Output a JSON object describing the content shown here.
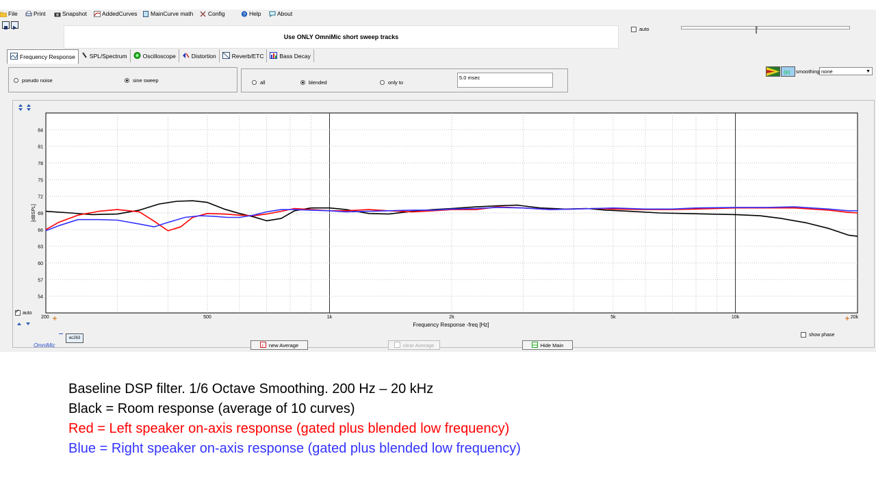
{
  "menu": [
    {
      "label": "File",
      "icon": "folder-icon"
    },
    {
      "label": "Print",
      "icon": "printer-icon"
    },
    {
      "label": "Snapshot",
      "icon": "camera-icon"
    },
    {
      "label": "AddedCurves",
      "icon": "curves-icon"
    },
    {
      "label": "MainCurve math",
      "icon": "calculator-icon"
    },
    {
      "label": "Config",
      "icon": "tools-icon"
    },
    {
      "label": "Help",
      "icon": "help-icon"
    },
    {
      "label": "About",
      "icon": "speech-bubble-icon"
    }
  ],
  "banner": "Use ONLY OmniMic short sweep tracks",
  "auto_label": "auto",
  "tabs": [
    {
      "label": "Frequency Response",
      "icon": "frequency-icon",
      "active": true
    },
    {
      "label": "SPL/Spectrum",
      "icon": "microphone-icon",
      "active": false
    },
    {
      "label": "Oscilloscope",
      "icon": "oscilloscope-icon",
      "active": false
    },
    {
      "label": "Distortion",
      "icon": "distortion-icon",
      "active": false
    },
    {
      "label": "Reverb/ETC",
      "icon": "reverb-icon",
      "active": false
    },
    {
      "label": "Bass Decay",
      "icon": "bass-decay-icon",
      "active": false
    }
  ],
  "signal": {
    "pseudo_noise": "pseudo noise",
    "sine_sweep": "sine sweep",
    "selected": "sine sweep"
  },
  "gating": {
    "all": "all",
    "blended": "blended",
    "only_to": "only to",
    "selected": "blended",
    "gate_time": "5.0 msec"
  },
  "smoothing": {
    "label": "smoothing",
    "value": "none"
  },
  "plot": {
    "auto_label": "auto",
    "show_phase_label": "show phase",
    "omnimic_label": "OmniMic",
    "device_label": "ec263",
    "new_average": "new Average",
    "clear_average": "clear Average",
    "hide_main": "Hide Main"
  },
  "chart_data": {
    "type": "line",
    "xlabel": "Frequency Response -freq [Hz]",
    "ylabel": "[dBSPL]",
    "x_scale": "log",
    "xlim": [
      200,
      20000
    ],
    "ylim": [
      51,
      87
    ],
    "y_ticks": [
      54,
      57,
      60,
      63,
      66,
      69,
      72,
      75,
      78,
      81,
      84
    ],
    "x_tick_labels": [
      {
        "f": 200,
        "label": "200"
      },
      {
        "f": 500,
        "label": "500"
      },
      {
        "f": 1000,
        "label": "1k"
      },
      {
        "f": 2000,
        "label": "2k"
      },
      {
        "f": 5000,
        "label": "5k"
      },
      {
        "f": 10000,
        "label": "10k"
      },
      {
        "f": 20000,
        "label": "20k"
      }
    ],
    "grid": true,
    "series": [
      {
        "color": "#000000",
        "x": [
          200,
          230,
          260,
          300,
          340,
          380,
          420,
          460,
          500,
          550,
          600,
          650,
          700,
          760,
          820,
          900,
          1000,
          1100,
          1250,
          1400,
          1600,
          1800,
          2000,
          2300,
          2600,
          2900,
          3300,
          3800,
          4300,
          4800,
          5500,
          6500,
          7500,
          8500,
          10000,
          11500,
          13000,
          15000,
          17000,
          19000,
          20000
        ],
        "y": [
          69.3,
          69.0,
          68.7,
          68.8,
          69.5,
          70.6,
          71.1,
          71.2,
          70.9,
          69.7,
          68.9,
          68.3,
          67.6,
          68.0,
          69.4,
          69.9,
          69.9,
          69.6,
          68.9,
          68.8,
          69.3,
          69.6,
          69.8,
          70.1,
          70.3,
          70.4,
          69.9,
          69.7,
          69.8,
          69.5,
          69.3,
          69.0,
          68.9,
          68.8,
          68.7,
          68.5,
          68.0,
          67.2,
          66.2,
          65.0,
          64.8
        ]
      },
      {
        "color": "#ff0000",
        "x": [
          200,
          215,
          240,
          270,
          300,
          340,
          370,
          400,
          430,
          460,
          500,
          550,
          600,
          650,
          700,
          760,
          820,
          900,
          1000,
          1100,
          1250,
          1400,
          1600,
          1800,
          2000,
          2300,
          2600,
          3000,
          3500,
          4000,
          4500,
          5000,
          6000,
          7000,
          8000,
          10000,
          12000,
          14000,
          17000,
          19000,
          20000
        ],
        "y": [
          66.0,
          67.3,
          68.6,
          69.3,
          69.6,
          69.2,
          67.5,
          65.8,
          66.5,
          68.2,
          68.9,
          68.8,
          68.6,
          68.5,
          68.8,
          69.3,
          69.8,
          69.6,
          69.4,
          69.4,
          69.6,
          69.4,
          69.2,
          69.4,
          69.6,
          69.6,
          70.1,
          69.9,
          69.6,
          69.7,
          69.8,
          69.7,
          69.6,
          69.6,
          69.7,
          69.9,
          69.9,
          69.9,
          69.5,
          69.1,
          69.0
        ]
      },
      {
        "color": "#3333ff",
        "x": [
          200,
          215,
          240,
          270,
          300,
          340,
          370,
          400,
          440,
          480,
          520,
          560,
          600,
          650,
          700,
          760,
          820,
          900,
          1000,
          1100,
          1250,
          1400,
          1600,
          1800,
          2000,
          2300,
          2600,
          3000,
          3500,
          4000,
          4500,
          5000,
          6000,
          7000,
          8000,
          10000,
          12000,
          14000,
          17000,
          19000,
          20000
        ],
        "y": [
          65.8,
          66.7,
          67.8,
          67.8,
          67.7,
          67.0,
          66.5,
          67.3,
          68.2,
          68.5,
          68.4,
          68.2,
          68.2,
          68.6,
          69.2,
          69.6,
          69.6,
          69.5,
          69.4,
          69.2,
          69.3,
          69.4,
          69.5,
          69.5,
          69.7,
          69.8,
          70.0,
          69.9,
          69.6,
          69.7,
          69.8,
          69.9,
          69.7,
          69.7,
          69.9,
          70.0,
          70.0,
          70.1,
          69.7,
          69.4,
          69.4
        ]
      }
    ]
  },
  "captions": [
    {
      "text": "Baseline DSP filter.     1/6 Octave Smoothing.     200 Hz – 20 kHz",
      "color": "#000000"
    },
    {
      "text": "Black = Room response (average of 10 curves)",
      "color": "#000000"
    },
    {
      "text": "Red     = Left speaker on-axis response (gated plus blended low frequency)",
      "color": "#ff0000"
    },
    {
      "text": "Blue   = Right speaker on-axis response (gated plus blended low frequency)",
      "color": "#3333ff"
    }
  ]
}
